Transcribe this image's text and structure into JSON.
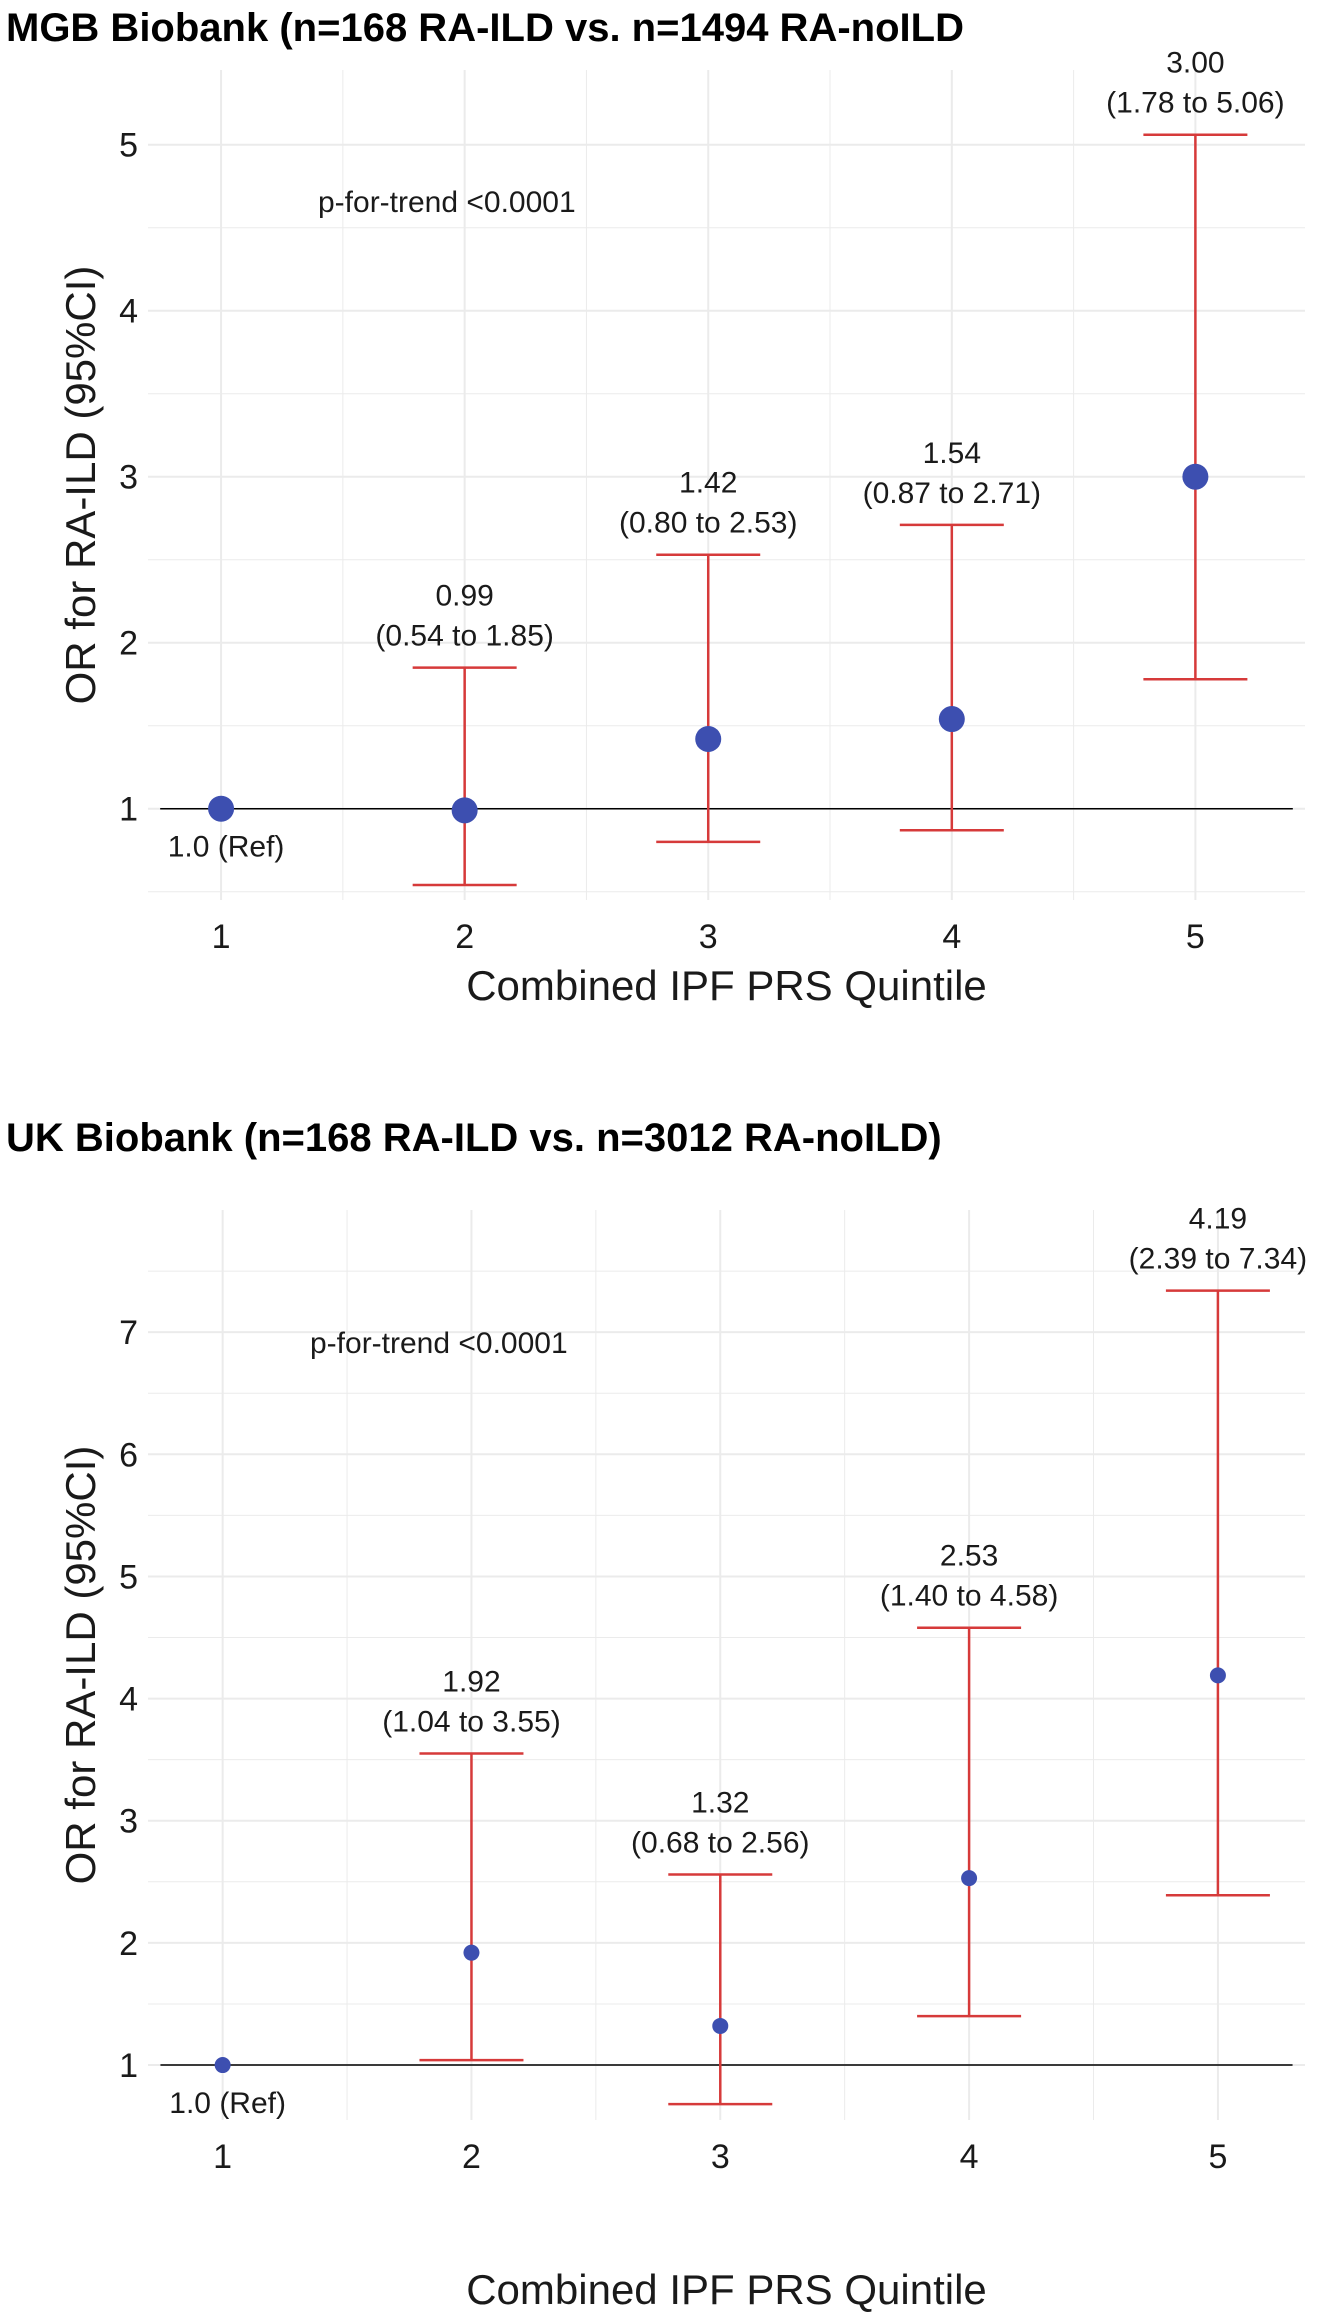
{
  "chart_data": [
    {
      "type": "scatter",
      "title": "MGB Biobank (n=168 RA-ILD vs. n=1494 RA-noILD",
      "xlabel": "Combined IPF PRS Quintile",
      "ylabel": "OR for RA-ILD (95%CI)",
      "x_ticks": [
        "1",
        "2",
        "3",
        "4",
        "5"
      ],
      "y_ticks": [
        "1",
        "2",
        "3",
        "4",
        "5"
      ],
      "xlim": [
        0.7,
        5.45
      ],
      "ylim": [
        0.45,
        5.45
      ],
      "reference_line": 1,
      "grid": true,
      "annotation": "p-for-trend <0.0001",
      "points": [
        {
          "x": 1,
          "or": 1.0,
          "lo": null,
          "hi": null,
          "label_or": "1.0 (Ref)",
          "label_ci": ""
        },
        {
          "x": 2,
          "or": 0.99,
          "lo": 0.54,
          "hi": 1.85,
          "label_or": "0.99",
          "label_ci": "(0.54 to 1.85)"
        },
        {
          "x": 3,
          "or": 1.42,
          "lo": 0.8,
          "hi": 2.53,
          "label_or": "1.42",
          "label_ci": "(0.80 to 2.53)"
        },
        {
          "x": 4,
          "or": 1.54,
          "lo": 0.87,
          "hi": 2.71,
          "label_or": "1.54",
          "label_ci": "(0.87 to 2.71)"
        },
        {
          "x": 5,
          "or": 3.0,
          "lo": 1.78,
          "hi": 5.06,
          "label_or": "3.00",
          "label_ci": "(1.78 to 5.06)"
        }
      ]
    },
    {
      "type": "scatter",
      "title": "UK Biobank (n=168 RA-ILD vs. n=3012 RA-noILD)",
      "xlabel": "Combined IPF PRS Quintile",
      "ylabel": "OR for RA-ILD (95%CI)",
      "x_ticks": [
        "1",
        "2",
        "3",
        "4",
        "5"
      ],
      "y_ticks": [
        "1",
        "2",
        "3",
        "4",
        "5",
        "6",
        "7"
      ],
      "xlim": [
        0.7,
        5.35
      ],
      "ylim": [
        0.55,
        8.0
      ],
      "reference_line": 1,
      "grid": true,
      "annotation": "p-for-trend <0.0001",
      "points": [
        {
          "x": 1,
          "or": 1.0,
          "lo": null,
          "hi": null,
          "label_or": "1.0 (Ref)",
          "label_ci": ""
        },
        {
          "x": 2,
          "or": 1.92,
          "lo": 1.04,
          "hi": 3.55,
          "label_or": "1.92",
          "label_ci": "(1.04 to 3.55)"
        },
        {
          "x": 3,
          "or": 1.32,
          "lo": 0.68,
          "hi": 2.56,
          "label_or": "1.32",
          "label_ci": "(0.68 to 2.56)"
        },
        {
          "x": 4,
          "or": 2.53,
          "lo": 1.4,
          "hi": 4.58,
          "label_or": "2.53",
          "label_ci": "(1.40 to 4.58)"
        },
        {
          "x": 5,
          "or": 4.19,
          "lo": 2.39,
          "hi": 7.34,
          "label_or": "4.19",
          "label_ci": "(2.39 to 7.34)"
        }
      ]
    }
  ],
  "colors": {
    "point": "#3d4fb0",
    "error_bar": "#d63a3a",
    "reference_line": "#000000",
    "grid": "#ebebeb",
    "text": "#1a1a1a"
  }
}
